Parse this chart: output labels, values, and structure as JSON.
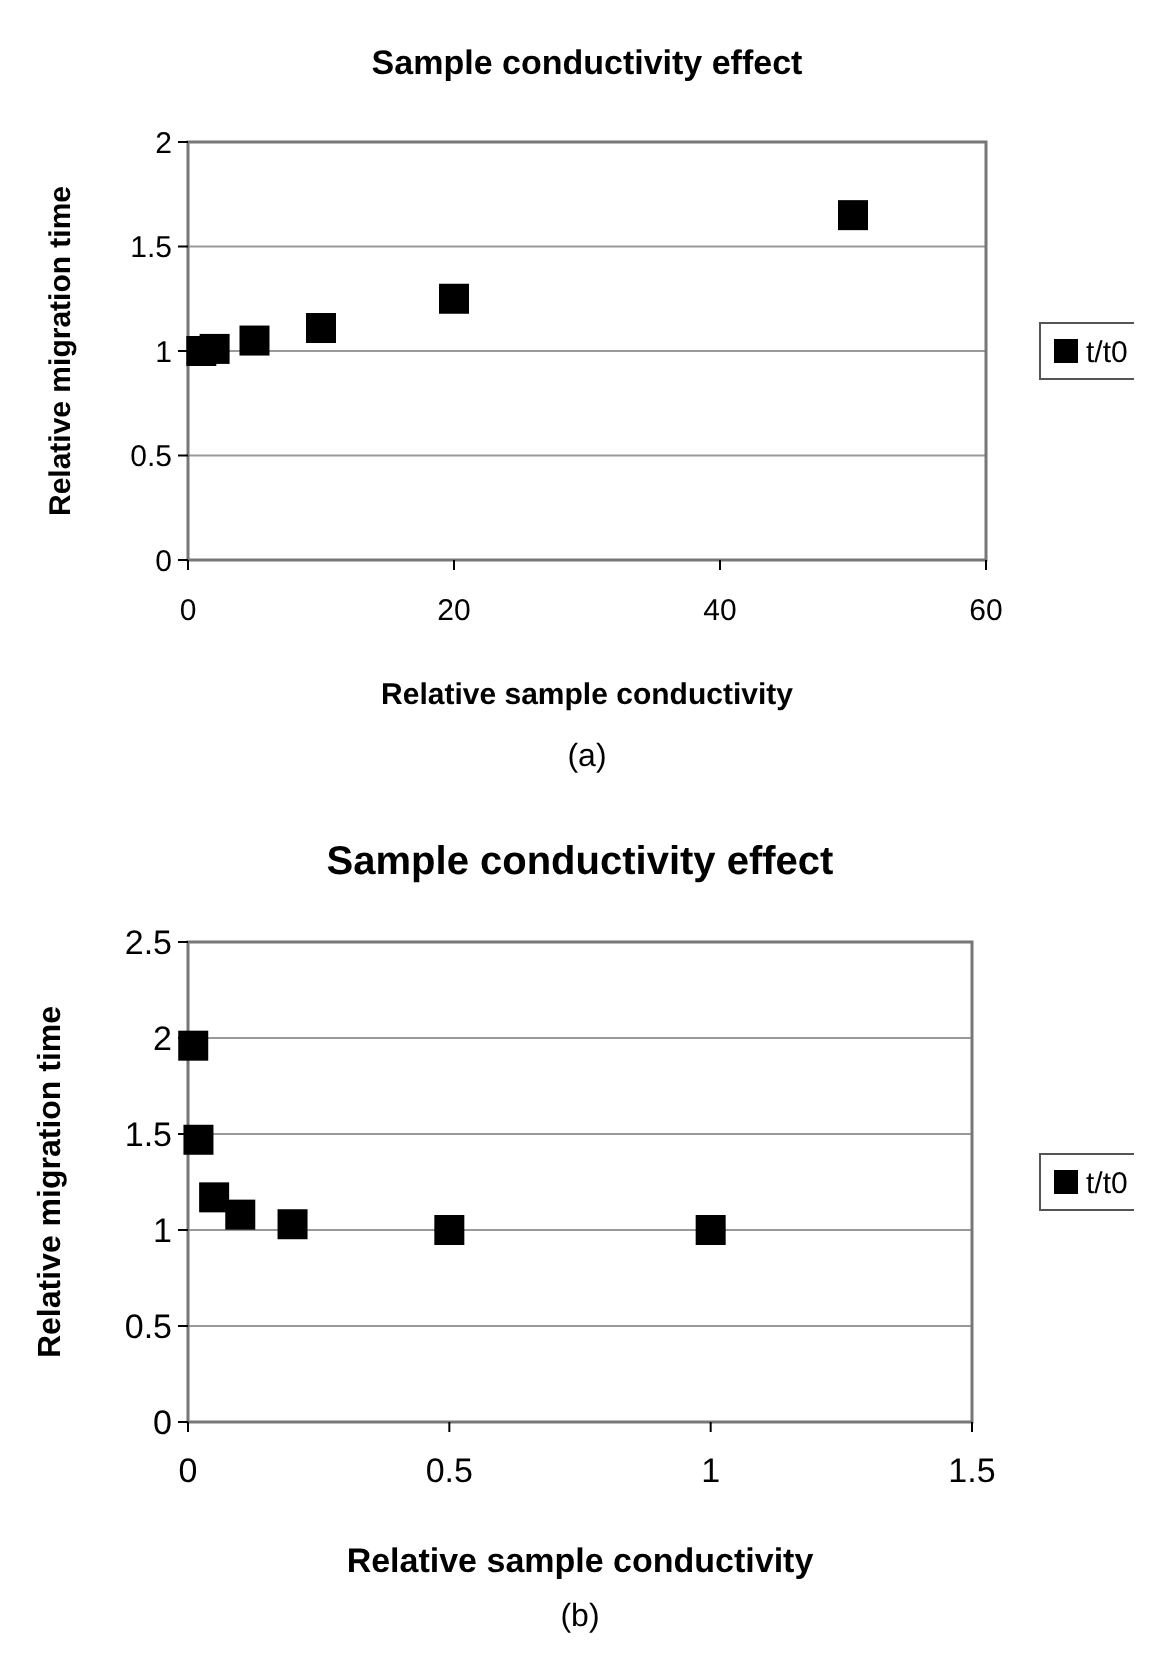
{
  "chart_data": [
    {
      "type": "scatter",
      "title": "Sample conductivity effect",
      "xlabel": "Relative sample conductivity",
      "ylabel": "Relative migration time",
      "x": [
        1,
        2,
        5,
        10,
        20,
        50
      ],
      "series": [
        {
          "name": "t/t0",
          "color": "#000000",
          "values": [
            1.0,
            1.01,
            1.05,
            1.11,
            1.25,
            1.65
          ]
        }
      ],
      "xlim": [
        0,
        60
      ],
      "xticks": [
        0,
        20,
        40,
        60
      ],
      "ylim": [
        0,
        2
      ],
      "yticks": [
        0,
        0.5,
        1,
        1.5,
        2
      ],
      "grid": "y",
      "legend": "right",
      "marker": "square",
      "annotations": [
        "(a)"
      ]
    },
    {
      "type": "scatter",
      "title": "Sample conductivity effect",
      "xlabel": "Relative sample conductivity",
      "ylabel": "Relative migration time",
      "x": [
        0.01,
        0.02,
        0.05,
        0.1,
        0.2,
        0.5,
        1
      ],
      "series": [
        {
          "name": "t/t0",
          "color": "#000000",
          "values": [
            1.96,
            1.47,
            1.17,
            1.08,
            1.03,
            1.0,
            1.0
          ]
        }
      ],
      "xlim": [
        0,
        1.5
      ],
      "xticks": [
        0,
        0.5,
        1,
        1.5
      ],
      "ylim": [
        0,
        2.5
      ],
      "yticks": [
        0,
        0.5,
        1,
        1.5,
        2,
        2.5
      ],
      "grid": "y",
      "legend": "right",
      "marker": "square",
      "annotations": [
        "(b)"
      ]
    }
  ]
}
